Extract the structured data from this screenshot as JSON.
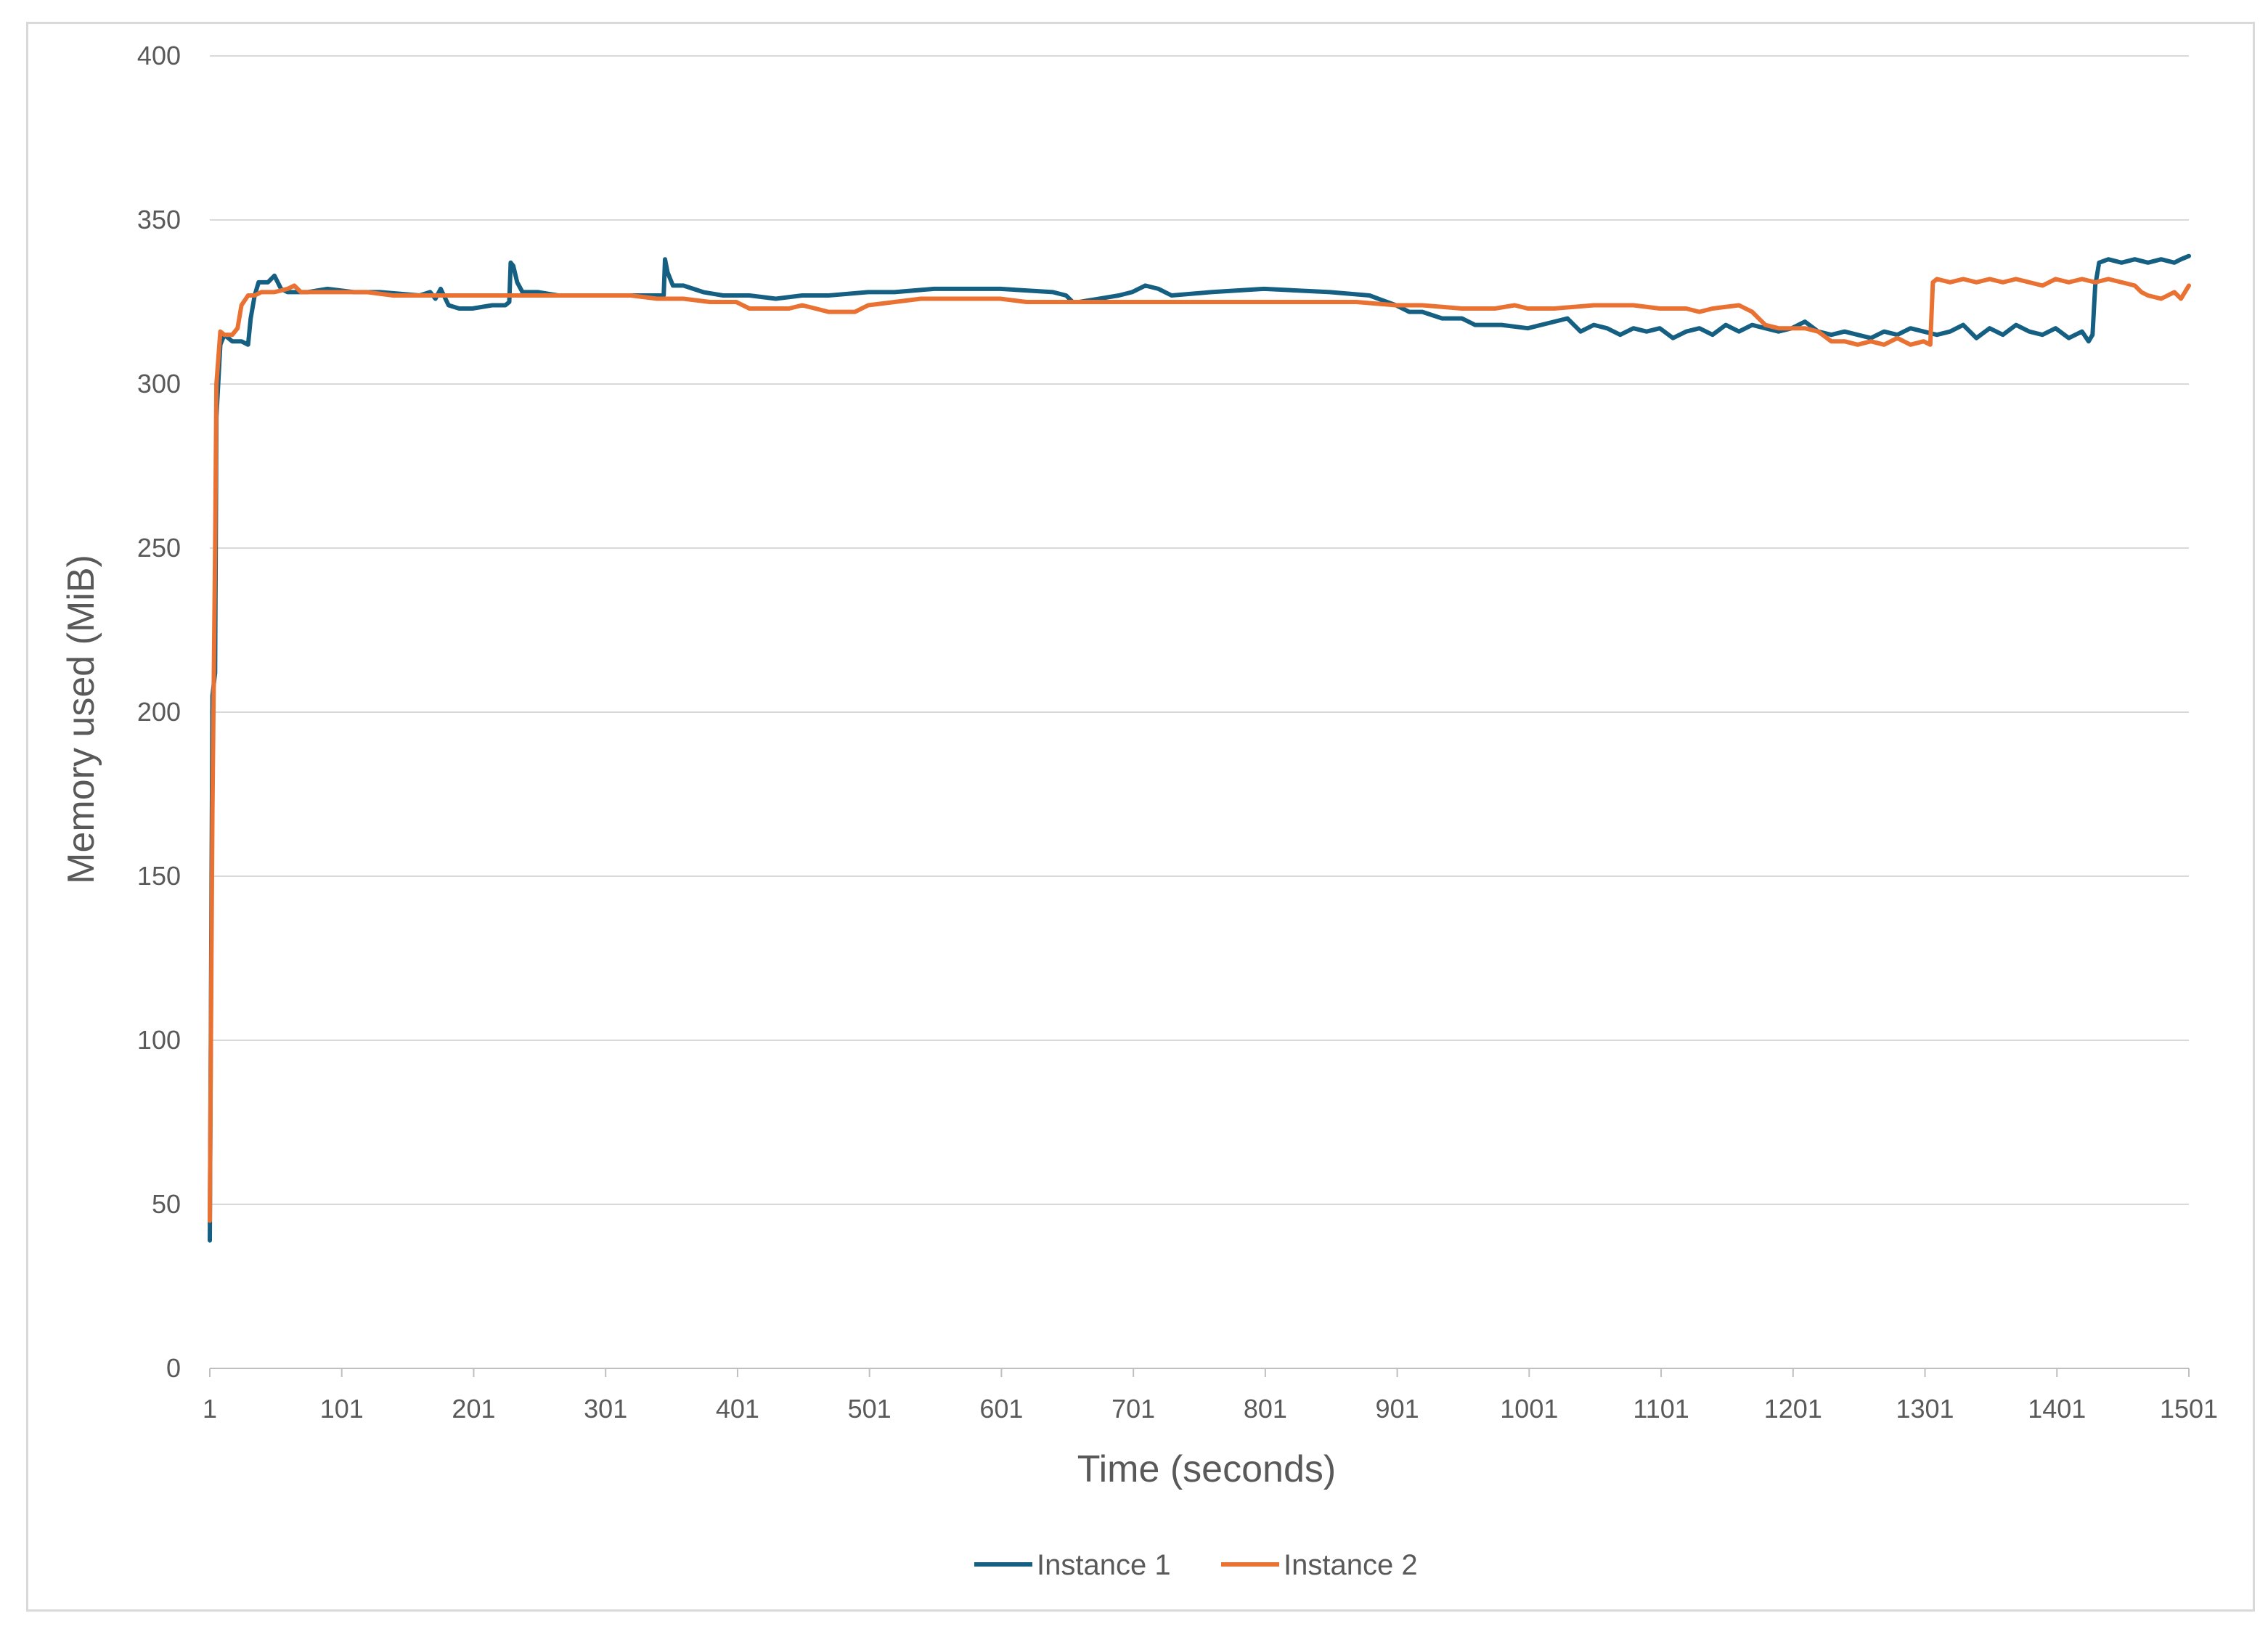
{
  "chart_data": {
    "type": "line",
    "title": "",
    "xlabel": "Time (seconds)",
    "ylabel": "Memory used (MiB)",
    "xlim": [
      1,
      1501
    ],
    "ylim": [
      0,
      400
    ],
    "x_ticks": [
      "1",
      "101",
      "201",
      "301",
      "401",
      "501",
      "601",
      "701",
      "801",
      "901",
      "1001",
      "1101",
      "1201",
      "1301",
      "1401",
      "1501"
    ],
    "y_ticks": [
      "0",
      "50",
      "100",
      "150",
      "200",
      "250",
      "300",
      "350",
      "400"
    ],
    "grid": "horizontal",
    "legend_position": "bottom",
    "series": [
      {
        "name": "Instance 1",
        "color": "#156082",
        "points": [
          [
            1,
            39
          ],
          [
            2,
            120
          ],
          [
            3,
            205
          ],
          [
            5,
            212
          ],
          [
            6,
            290
          ],
          [
            9,
            312
          ],
          [
            12,
            315
          ],
          [
            18,
            313
          ],
          [
            25,
            313
          ],
          [
            30,
            312
          ],
          [
            32,
            320
          ],
          [
            35,
            327
          ],
          [
            38,
            331
          ],
          [
            45,
            331
          ],
          [
            50,
            333
          ],
          [
            55,
            329
          ],
          [
            60,
            328
          ],
          [
            75,
            328
          ],
          [
            90,
            329
          ],
          [
            110,
            328
          ],
          [
            130,
            328
          ],
          [
            160,
            327
          ],
          [
            168,
            328
          ],
          [
            172,
            326
          ],
          [
            176,
            329
          ],
          [
            182,
            324
          ],
          [
            190,
            323
          ],
          [
            200,
            323
          ],
          [
            215,
            324
          ],
          [
            225,
            324
          ],
          [
            228,
            325
          ],
          [
            229,
            337
          ],
          [
            231,
            336
          ],
          [
            234,
            331
          ],
          [
            238,
            328
          ],
          [
            250,
            328
          ],
          [
            265,
            327
          ],
          [
            280,
            327
          ],
          [
            300,
            327
          ],
          [
            320,
            327
          ],
          [
            340,
            327
          ],
          [
            345,
            327
          ],
          [
            346,
            338
          ],
          [
            348,
            334
          ],
          [
            352,
            330
          ],
          [
            360,
            330
          ],
          [
            375,
            328
          ],
          [
            390,
            327
          ],
          [
            410,
            327
          ],
          [
            430,
            326
          ],
          [
            450,
            327
          ],
          [
            470,
            327
          ],
          [
            500,
            328
          ],
          [
            520,
            328
          ],
          [
            550,
            329
          ],
          [
            600,
            329
          ],
          [
            640,
            328
          ],
          [
            650,
            327
          ],
          [
            655,
            325
          ],
          [
            660,
            325
          ],
          [
            690,
            327
          ],
          [
            700,
            328
          ],
          [
            710,
            330
          ],
          [
            720,
            329
          ],
          [
            730,
            327
          ],
          [
            760,
            328
          ],
          [
            800,
            329
          ],
          [
            850,
            328
          ],
          [
            880,
            327
          ],
          [
            900,
            324
          ],
          [
            910,
            322
          ],
          [
            920,
            322
          ],
          [
            935,
            320
          ],
          [
            950,
            320
          ],
          [
            960,
            318
          ],
          [
            980,
            318
          ],
          [
            1000,
            317
          ],
          [
            1010,
            318
          ],
          [
            1020,
            319
          ],
          [
            1030,
            320
          ],
          [
            1040,
            316
          ],
          [
            1050,
            318
          ],
          [
            1060,
            317
          ],
          [
            1070,
            315
          ],
          [
            1080,
            317
          ],
          [
            1090,
            316
          ],
          [
            1100,
            317
          ],
          [
            1110,
            314
          ],
          [
            1120,
            316
          ],
          [
            1130,
            317
          ],
          [
            1140,
            315
          ],
          [
            1150,
            318
          ],
          [
            1160,
            316
          ],
          [
            1170,
            318
          ],
          [
            1180,
            317
          ],
          [
            1190,
            316
          ],
          [
            1200,
            317
          ],
          [
            1210,
            319
          ],
          [
            1220,
            316
          ],
          [
            1230,
            315
          ],
          [
            1240,
            316
          ],
          [
            1250,
            315
          ],
          [
            1260,
            314
          ],
          [
            1270,
            316
          ],
          [
            1280,
            315
          ],
          [
            1290,
            317
          ],
          [
            1300,
            316
          ],
          [
            1310,
            315
          ],
          [
            1320,
            316
          ],
          [
            1330,
            318
          ],
          [
            1340,
            314
          ],
          [
            1350,
            317
          ],
          [
            1360,
            315
          ],
          [
            1370,
            318
          ],
          [
            1380,
            316
          ],
          [
            1390,
            315
          ],
          [
            1400,
            317
          ],
          [
            1410,
            314
          ],
          [
            1420,
            316
          ],
          [
            1425,
            313
          ],
          [
            1428,
            315
          ],
          [
            1430,
            330
          ],
          [
            1433,
            337
          ],
          [
            1440,
            338
          ],
          [
            1450,
            337
          ],
          [
            1460,
            338
          ],
          [
            1470,
            337
          ],
          [
            1480,
            338
          ],
          [
            1490,
            337
          ],
          [
            1495,
            338
          ],
          [
            1501,
            339
          ]
        ]
      },
      {
        "name": "Instance 2",
        "color": "#E97132",
        "points": [
          [
            1,
            45
          ],
          [
            2,
            110
          ],
          [
            3,
            170
          ],
          [
            5,
            250
          ],
          [
            6,
            300
          ],
          [
            9,
            316
          ],
          [
            12,
            315
          ],
          [
            18,
            315
          ],
          [
            22,
            317
          ],
          [
            25,
            324
          ],
          [
            30,
            327
          ],
          [
            35,
            327
          ],
          [
            40,
            328
          ],
          [
            50,
            328
          ],
          [
            60,
            329
          ],
          [
            65,
            330
          ],
          [
            70,
            328
          ],
          [
            80,
            328
          ],
          [
            100,
            328
          ],
          [
            120,
            328
          ],
          [
            140,
            327
          ],
          [
            160,
            327
          ],
          [
            180,
            327
          ],
          [
            200,
            327
          ],
          [
            220,
            327
          ],
          [
            240,
            327
          ],
          [
            260,
            327
          ],
          [
            280,
            327
          ],
          [
            300,
            327
          ],
          [
            320,
            327
          ],
          [
            340,
            326
          ],
          [
            360,
            326
          ],
          [
            380,
            325
          ],
          [
            400,
            325
          ],
          [
            410,
            323
          ],
          [
            420,
            323
          ],
          [
            440,
            323
          ],
          [
            450,
            324
          ],
          [
            460,
            323
          ],
          [
            470,
            322
          ],
          [
            490,
            322
          ],
          [
            500,
            324
          ],
          [
            520,
            325
          ],
          [
            540,
            326
          ],
          [
            560,
            326
          ],
          [
            580,
            326
          ],
          [
            600,
            326
          ],
          [
            620,
            325
          ],
          [
            650,
            325
          ],
          [
            680,
            325
          ],
          [
            700,
            325
          ],
          [
            720,
            325
          ],
          [
            740,
            325
          ],
          [
            760,
            325
          ],
          [
            800,
            325
          ],
          [
            840,
            325
          ],
          [
            870,
            325
          ],
          [
            900,
            324
          ],
          [
            920,
            324
          ],
          [
            950,
            323
          ],
          [
            975,
            323
          ],
          [
            990,
            324
          ],
          [
            1000,
            323
          ],
          [
            1020,
            323
          ],
          [
            1050,
            324
          ],
          [
            1080,
            324
          ],
          [
            1100,
            323
          ],
          [
            1120,
            323
          ],
          [
            1130,
            322
          ],
          [
            1140,
            323
          ],
          [
            1160,
            324
          ],
          [
            1170,
            322
          ],
          [
            1175,
            320
          ],
          [
            1180,
            318
          ],
          [
            1190,
            317
          ],
          [
            1200,
            317
          ],
          [
            1210,
            317
          ],
          [
            1220,
            316
          ],
          [
            1230,
            313
          ],
          [
            1240,
            313
          ],
          [
            1250,
            312
          ],
          [
            1260,
            313
          ],
          [
            1270,
            312
          ],
          [
            1280,
            314
          ],
          [
            1290,
            312
          ],
          [
            1300,
            313
          ],
          [
            1305,
            312
          ],
          [
            1307,
            331
          ],
          [
            1310,
            332
          ],
          [
            1320,
            331
          ],
          [
            1330,
            332
          ],
          [
            1340,
            331
          ],
          [
            1350,
            332
          ],
          [
            1360,
            331
          ],
          [
            1370,
            332
          ],
          [
            1380,
            331
          ],
          [
            1390,
            330
          ],
          [
            1400,
            332
          ],
          [
            1410,
            331
          ],
          [
            1420,
            332
          ],
          [
            1430,
            331
          ],
          [
            1440,
            332
          ],
          [
            1450,
            331
          ],
          [
            1460,
            330
          ],
          [
            1465,
            328
          ],
          [
            1470,
            327
          ],
          [
            1480,
            326
          ],
          [
            1490,
            328
          ],
          [
            1495,
            326
          ],
          [
            1501,
            330
          ]
        ]
      }
    ]
  }
}
